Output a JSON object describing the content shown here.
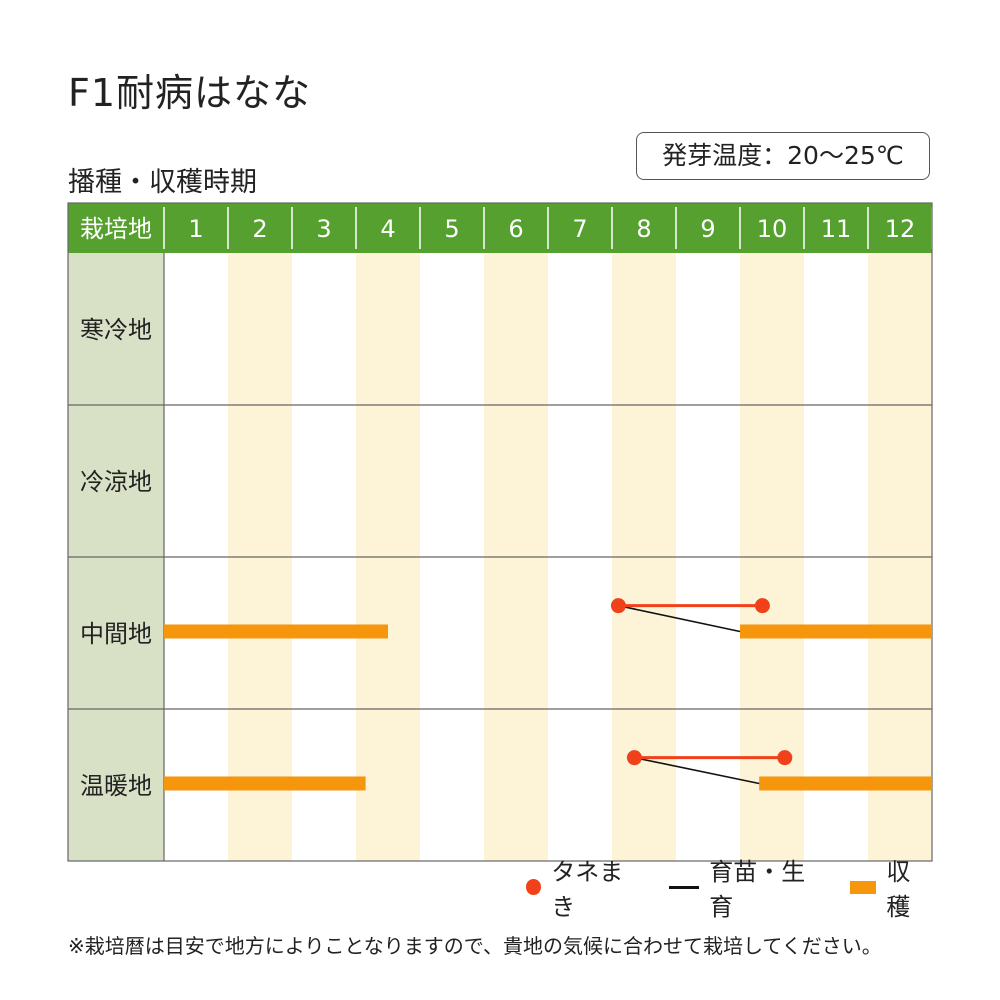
{
  "title": "F1耐病はなな",
  "subtitle": "播種・収穫時期",
  "badge": "発芽温度：20〜25℃",
  "chart_data": {
    "type": "gantt",
    "header_label": "栽培地",
    "months": [
      "1",
      "2",
      "3",
      "4",
      "5",
      "6",
      "7",
      "8",
      "9",
      "10",
      "11",
      "12"
    ],
    "regions": [
      {
        "name": "寒冷地",
        "sowing": null,
        "harvest": []
      },
      {
        "name": "冷涼地",
        "sowing": null,
        "harvest": []
      },
      {
        "name": "中間地",
        "sowing": {
          "start": 8.1,
          "end": 10.35
        },
        "harvest": [
          {
            "start": 1.0,
            "end": 4.5
          },
          {
            "start": 10.0,
            "end": 13.0
          }
        ]
      },
      {
        "name": "温暖地",
        "sowing": {
          "start": 8.35,
          "end": 10.7
        },
        "harvest": [
          {
            "start": 1.0,
            "end": 4.15
          },
          {
            "start": 10.3,
            "end": 13.0
          }
        ]
      }
    ],
    "colors": {
      "header_bg": "#55a02f",
      "region_bg": "#d8e0c6",
      "alt_column": "#fdf3d6",
      "sowing": "#f0411a",
      "growing": "#111111",
      "harvest": "#f5960d",
      "grid": "#666666"
    }
  },
  "legend": {
    "sowing_label": "タネまき",
    "growing_label": "育苗・生育",
    "harvest_label": "収穫"
  },
  "footnote": "※栽培暦は目安で地方によりことなりますので、貴地の気候に合わせて栽培してください。"
}
